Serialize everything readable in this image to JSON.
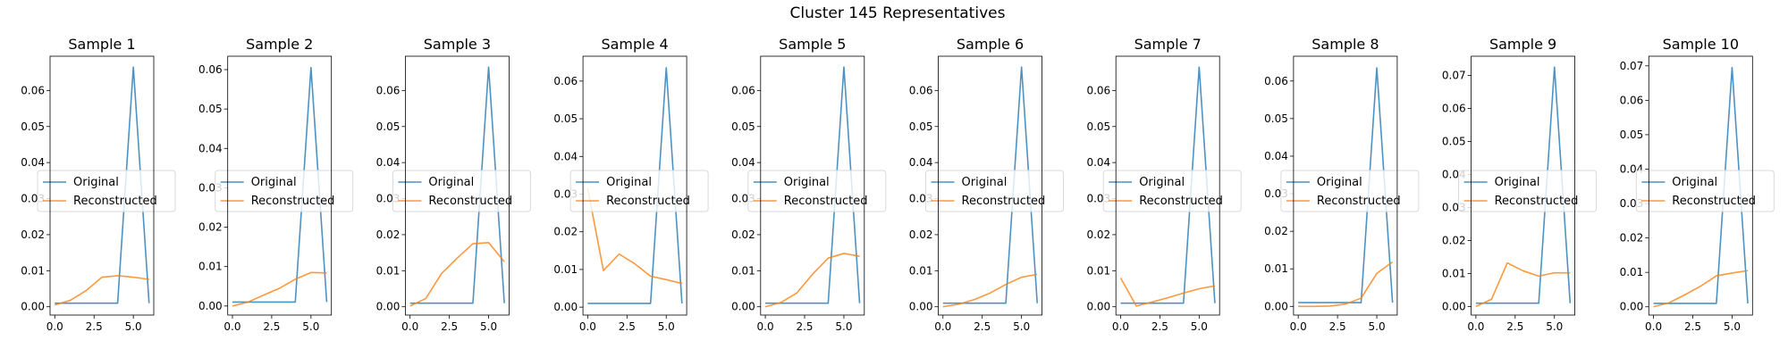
{
  "figure": {
    "suptitle": "Cluster 145 Representatives",
    "colors": {
      "original": "#1f77b4",
      "reconstructed": "#ff7f0e"
    },
    "legend_labels": {
      "original": "Original",
      "reconstructed": "Reconstructed"
    }
  },
  "chart_data": [
    {
      "type": "line",
      "title": "Sample 1",
      "legend": "center-left",
      "x": [
        0,
        1,
        2,
        3,
        4,
        5,
        6
      ],
      "xlim": [
        -0.3,
        6.3
      ],
      "ylim": [
        -0.0023,
        0.0695
      ],
      "xticks": [
        "0.0",
        "2.5",
        "5.0"
      ],
      "xtick_values": [
        0,
        2.5,
        5
      ],
      "yticks": [
        "0.00",
        "0.01",
        "0.02",
        "0.03",
        "0.04",
        "0.05",
        "0.06"
      ],
      "ytick_values": [
        0,
        0.01,
        0.02,
        0.03,
        0.04,
        0.05,
        0.06
      ],
      "series": [
        {
          "name": "Original",
          "values": [
            0.001,
            0.001,
            0.001,
            0.001,
            0.001,
            0.0665,
            0.001
          ]
        },
        {
          "name": "Reconstructed",
          "values": [
            0.0005,
            0.0018,
            0.0045,
            0.0082,
            0.0086,
            0.0082,
            0.0076
          ]
        }
      ]
    },
    {
      "type": "line",
      "title": "Sample 2",
      "legend": "center-left",
      "x": [
        0,
        1,
        2,
        3,
        4,
        5,
        6
      ],
      "xlim": [
        -0.3,
        6.3
      ],
      "ylim": [
        -0.0023,
        0.0634
      ],
      "xticks": [
        "0.0",
        "2.5",
        "5.0"
      ],
      "xtick_values": [
        0,
        2.5,
        5
      ],
      "yticks": [
        "0.00",
        "0.01",
        "0.02",
        "0.03",
        "0.04",
        "0.05",
        "0.06"
      ],
      "ytick_values": [
        0,
        0.01,
        0.02,
        0.03,
        0.04,
        0.05,
        0.06
      ],
      "series": [
        {
          "name": "Original",
          "values": [
            0.001,
            0.001,
            0.001,
            0.001,
            0.001,
            0.0605,
            0.001
          ]
        },
        {
          "name": "Reconstructed",
          "values": [
            0.0,
            0.001,
            0.0028,
            0.0045,
            0.0068,
            0.0085,
            0.0084
          ]
        }
      ]
    },
    {
      "type": "line",
      "title": "Sample 3",
      "legend": "center-left",
      "x": [
        0,
        1,
        2,
        3,
        4,
        5,
        6
      ],
      "xlim": [
        -0.3,
        6.3
      ],
      "ylim": [
        -0.0023,
        0.0695
      ],
      "xticks": [
        "0.0",
        "2.5",
        "5.0"
      ],
      "xtick_values": [
        0,
        2.5,
        5
      ],
      "yticks": [
        "0.00",
        "0.01",
        "0.02",
        "0.03",
        "0.04",
        "0.05",
        "0.06"
      ],
      "ytick_values": [
        0,
        0.01,
        0.02,
        0.03,
        0.04,
        0.05,
        0.06
      ],
      "series": [
        {
          "name": "Original",
          "values": [
            0.001,
            0.001,
            0.001,
            0.001,
            0.001,
            0.0665,
            0.001
          ]
        },
        {
          "name": "Reconstructed",
          "values": [
            0.0002,
            0.0023,
            0.0092,
            0.0135,
            0.0175,
            0.0178,
            0.0125
          ]
        }
      ]
    },
    {
      "type": "line",
      "title": "Sample 4",
      "legend": "center-left",
      "x": [
        0,
        1,
        2,
        3,
        4,
        5,
        6
      ],
      "xlim": [
        -0.3,
        6.3
      ],
      "ylim": [
        -0.0021,
        0.0666
      ],
      "xticks": [
        "0.0",
        "2.5",
        "5.0"
      ],
      "xtick_values": [
        0,
        2.5,
        5
      ],
      "yticks": [
        "0.00",
        "0.01",
        "0.02",
        "0.03",
        "0.04",
        "0.05",
        "0.06"
      ],
      "ytick_values": [
        0,
        0.01,
        0.02,
        0.03,
        0.04,
        0.05,
        0.06
      ],
      "series": [
        {
          "name": "Original",
          "values": [
            0.001,
            0.001,
            0.001,
            0.001,
            0.001,
            0.0635,
            0.001
          ]
        },
        {
          "name": "Reconstructed",
          "values": [
            0.0315,
            0.0097,
            0.0141,
            0.0115,
            0.0082,
            0.0073,
            0.0063
          ]
        }
      ]
    },
    {
      "type": "line",
      "title": "Sample 5",
      "legend": "center-left",
      "x": [
        0,
        1,
        2,
        3,
        4,
        5,
        6
      ],
      "xlim": [
        -0.3,
        6.3
      ],
      "ylim": [
        -0.0023,
        0.0695
      ],
      "xticks": [
        "0.0",
        "2.5",
        "5.0"
      ],
      "xtick_values": [
        0,
        2.5,
        5
      ],
      "yticks": [
        "0.00",
        "0.01",
        "0.02",
        "0.03",
        "0.04",
        "0.05",
        "0.06"
      ],
      "ytick_values": [
        0,
        0.01,
        0.02,
        0.03,
        0.04,
        0.05,
        0.06
      ],
      "series": [
        {
          "name": "Original",
          "values": [
            0.001,
            0.001,
            0.001,
            0.001,
            0.001,
            0.0665,
            0.001
          ]
        },
        {
          "name": "Reconstructed",
          "values": [
            0.0,
            0.0012,
            0.0038,
            0.009,
            0.0135,
            0.0148,
            0.014
          ]
        }
      ]
    },
    {
      "type": "line",
      "title": "Sample 6",
      "legend": "center-left",
      "x": [
        0,
        1,
        2,
        3,
        4,
        5,
        6
      ],
      "xlim": [
        -0.3,
        6.3
      ],
      "ylim": [
        -0.0023,
        0.0695
      ],
      "xticks": [
        "0.0",
        "2.5",
        "5.0"
      ],
      "xtick_values": [
        0,
        2.5,
        5
      ],
      "yticks": [
        "0.00",
        "0.01",
        "0.02",
        "0.03",
        "0.04",
        "0.05",
        "0.06"
      ],
      "ytick_values": [
        0,
        0.01,
        0.02,
        0.03,
        0.04,
        0.05,
        0.06
      ],
      "series": [
        {
          "name": "Original",
          "values": [
            0.001,
            0.001,
            0.001,
            0.001,
            0.001,
            0.0665,
            0.001
          ]
        },
        {
          "name": "Reconstructed",
          "values": [
            0.0,
            0.0007,
            0.002,
            0.0038,
            0.0062,
            0.0082,
            0.009
          ]
        }
      ]
    },
    {
      "type": "line",
      "title": "Sample 7",
      "legend": "center-left",
      "x": [
        0,
        1,
        2,
        3,
        4,
        5,
        6
      ],
      "xlim": [
        -0.3,
        6.3
      ],
      "ylim": [
        -0.0023,
        0.0695
      ],
      "xticks": [
        "0.0",
        "2.5",
        "5.0"
      ],
      "xtick_values": [
        0,
        2.5,
        5
      ],
      "yticks": [
        "0.00",
        "0.01",
        "0.02",
        "0.03",
        "0.04",
        "0.05",
        "0.06"
      ],
      "ytick_values": [
        0,
        0.01,
        0.02,
        0.03,
        0.04,
        0.05,
        0.06
      ],
      "series": [
        {
          "name": "Original",
          "values": [
            0.001,
            0.001,
            0.001,
            0.001,
            0.001,
            0.0665,
            0.001
          ]
        },
        {
          "name": "Reconstructed",
          "values": [
            0.008,
            0.0002,
            0.0013,
            0.0025,
            0.0038,
            0.005,
            0.0058
          ]
        }
      ]
    },
    {
      "type": "line",
      "title": "Sample 8",
      "legend": "center-left",
      "x": [
        0,
        1,
        2,
        3,
        4,
        5,
        6
      ],
      "xlim": [
        -0.3,
        6.3
      ],
      "ylim": [
        -0.0023,
        0.0666
      ],
      "xticks": [
        "0.0",
        "2.5",
        "5.0"
      ],
      "xtick_values": [
        0,
        2.5,
        5
      ],
      "yticks": [
        "0.00",
        "0.01",
        "0.02",
        "0.03",
        "0.04",
        "0.05",
        "0.06"
      ],
      "ytick_values": [
        0,
        0.01,
        0.02,
        0.03,
        0.04,
        0.05,
        0.06
      ],
      "series": [
        {
          "name": "Original",
          "values": [
            0.001,
            0.001,
            0.001,
            0.001,
            0.001,
            0.0635,
            0.001
          ]
        },
        {
          "name": "Reconstructed",
          "values": [
            0.0,
            0.0,
            0.0001,
            0.0006,
            0.0022,
            0.0088,
            0.0118
          ]
        }
      ]
    },
    {
      "type": "line",
      "title": "Sample 9",
      "legend": "center-left",
      "x": [
        0,
        1,
        2,
        3,
        4,
        5,
        6
      ],
      "xlim": [
        -0.3,
        6.3
      ],
      "ylim": [
        -0.0026,
        0.0758
      ],
      "xticks": [
        "0.0",
        "2.5",
        "5.0"
      ],
      "xtick_values": [
        0,
        2.5,
        5
      ],
      "yticks": [
        "0.00",
        "0.01",
        "0.02",
        "0.03",
        "0.04",
        "0.05",
        "0.06",
        "0.07"
      ],
      "ytick_values": [
        0,
        0.01,
        0.02,
        0.03,
        0.04,
        0.05,
        0.06,
        0.07
      ],
      "series": [
        {
          "name": "Original",
          "values": [
            0.001,
            0.001,
            0.001,
            0.001,
            0.001,
            0.0725,
            0.001
          ]
        },
        {
          "name": "Reconstructed",
          "values": [
            0.0,
            0.0022,
            0.0132,
            0.0108,
            0.0092,
            0.0102,
            0.0102
          ]
        }
      ]
    },
    {
      "type": "line",
      "title": "Sample 10",
      "legend": "center-left",
      "x": [
        0,
        1,
        2,
        3,
        4,
        5,
        6
      ],
      "xlim": [
        -0.3,
        6.3
      ],
      "ylim": [
        -0.0024,
        0.0728
      ],
      "xticks": [
        "0.0",
        "2.5",
        "5.0"
      ],
      "xtick_values": [
        0,
        2.5,
        5
      ],
      "yticks": [
        "0.00",
        "0.01",
        "0.02",
        "0.03",
        "0.04",
        "0.05",
        "0.06",
        "0.07"
      ],
      "ytick_values": [
        0,
        0.01,
        0.02,
        0.03,
        0.04,
        0.05,
        0.06,
        0.07
      ],
      "series": [
        {
          "name": "Original",
          "values": [
            0.001,
            0.001,
            0.001,
            0.001,
            0.001,
            0.0695,
            0.001
          ]
        },
        {
          "name": "Reconstructed",
          "values": [
            0.0,
            0.0012,
            0.0035,
            0.006,
            0.009,
            0.0098,
            0.0105
          ]
        }
      ]
    }
  ]
}
